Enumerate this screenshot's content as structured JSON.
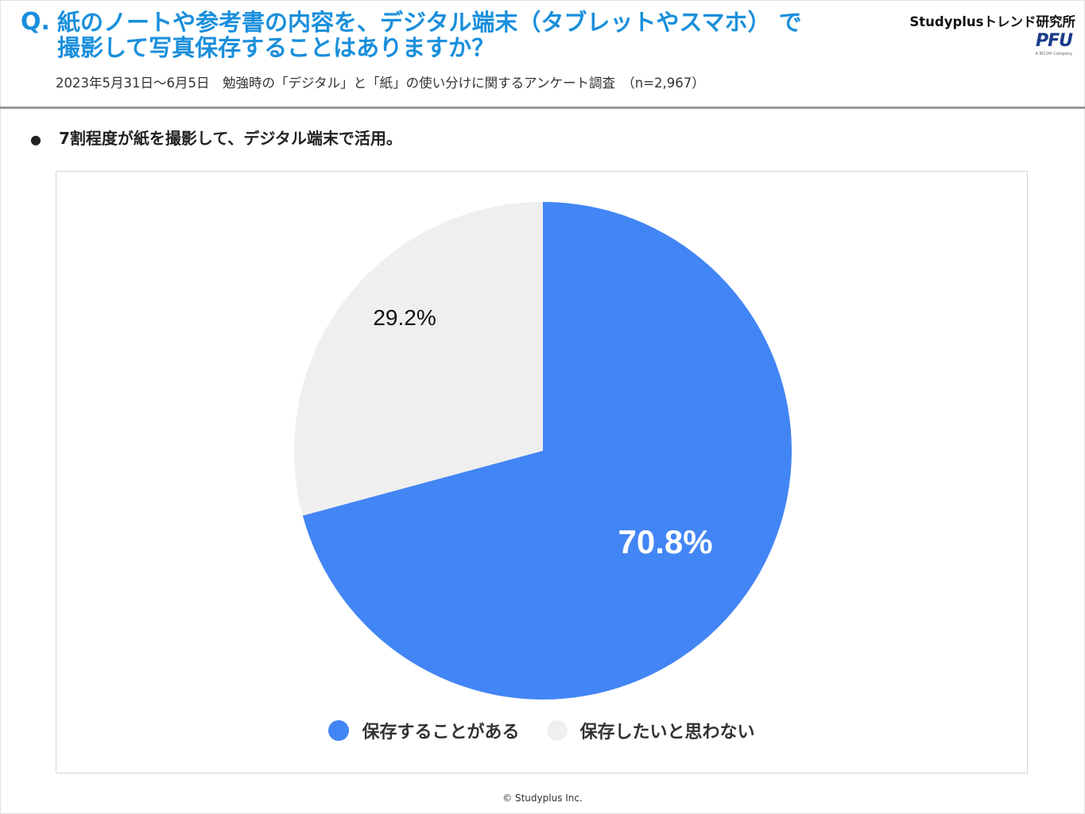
{
  "header": {
    "q_prefix": "Q.",
    "question_line1": "紙のノートや参考書の内容を、デジタル端末（タブレットやスマホ） で",
    "question_line2": "撮影して写真保存することはありますか？",
    "subtitle": "2023年5月31日～6月5日　勉強時の「デジタル」と「紙」の使い分けに関するアンケート調査　（n=2,967）",
    "brand_lab": "Studyplusトレンド研究所",
    "brand_logo": "PFU",
    "brand_logo_sub": "A RICOH Company"
  },
  "summary": {
    "bullet": "●",
    "text": "7割程度が紙を撮影して、デジタル端末で活用。"
  },
  "chart_data": {
    "type": "pie",
    "slices": [
      {
        "label": "保存することがある",
        "value": 70.8,
        "display": "70.8%",
        "color": "#4285f4",
        "label_color": "#ffffff"
      },
      {
        "label": "保存したいと思わない",
        "value": 29.2,
        "display": "29.2%",
        "color": "#efefef",
        "label_color": "#111111"
      }
    ],
    "start": "12 o'clock",
    "direction": "clockwise",
    "legend_position": "bottom"
  },
  "footer": "© Studyplus Inc."
}
